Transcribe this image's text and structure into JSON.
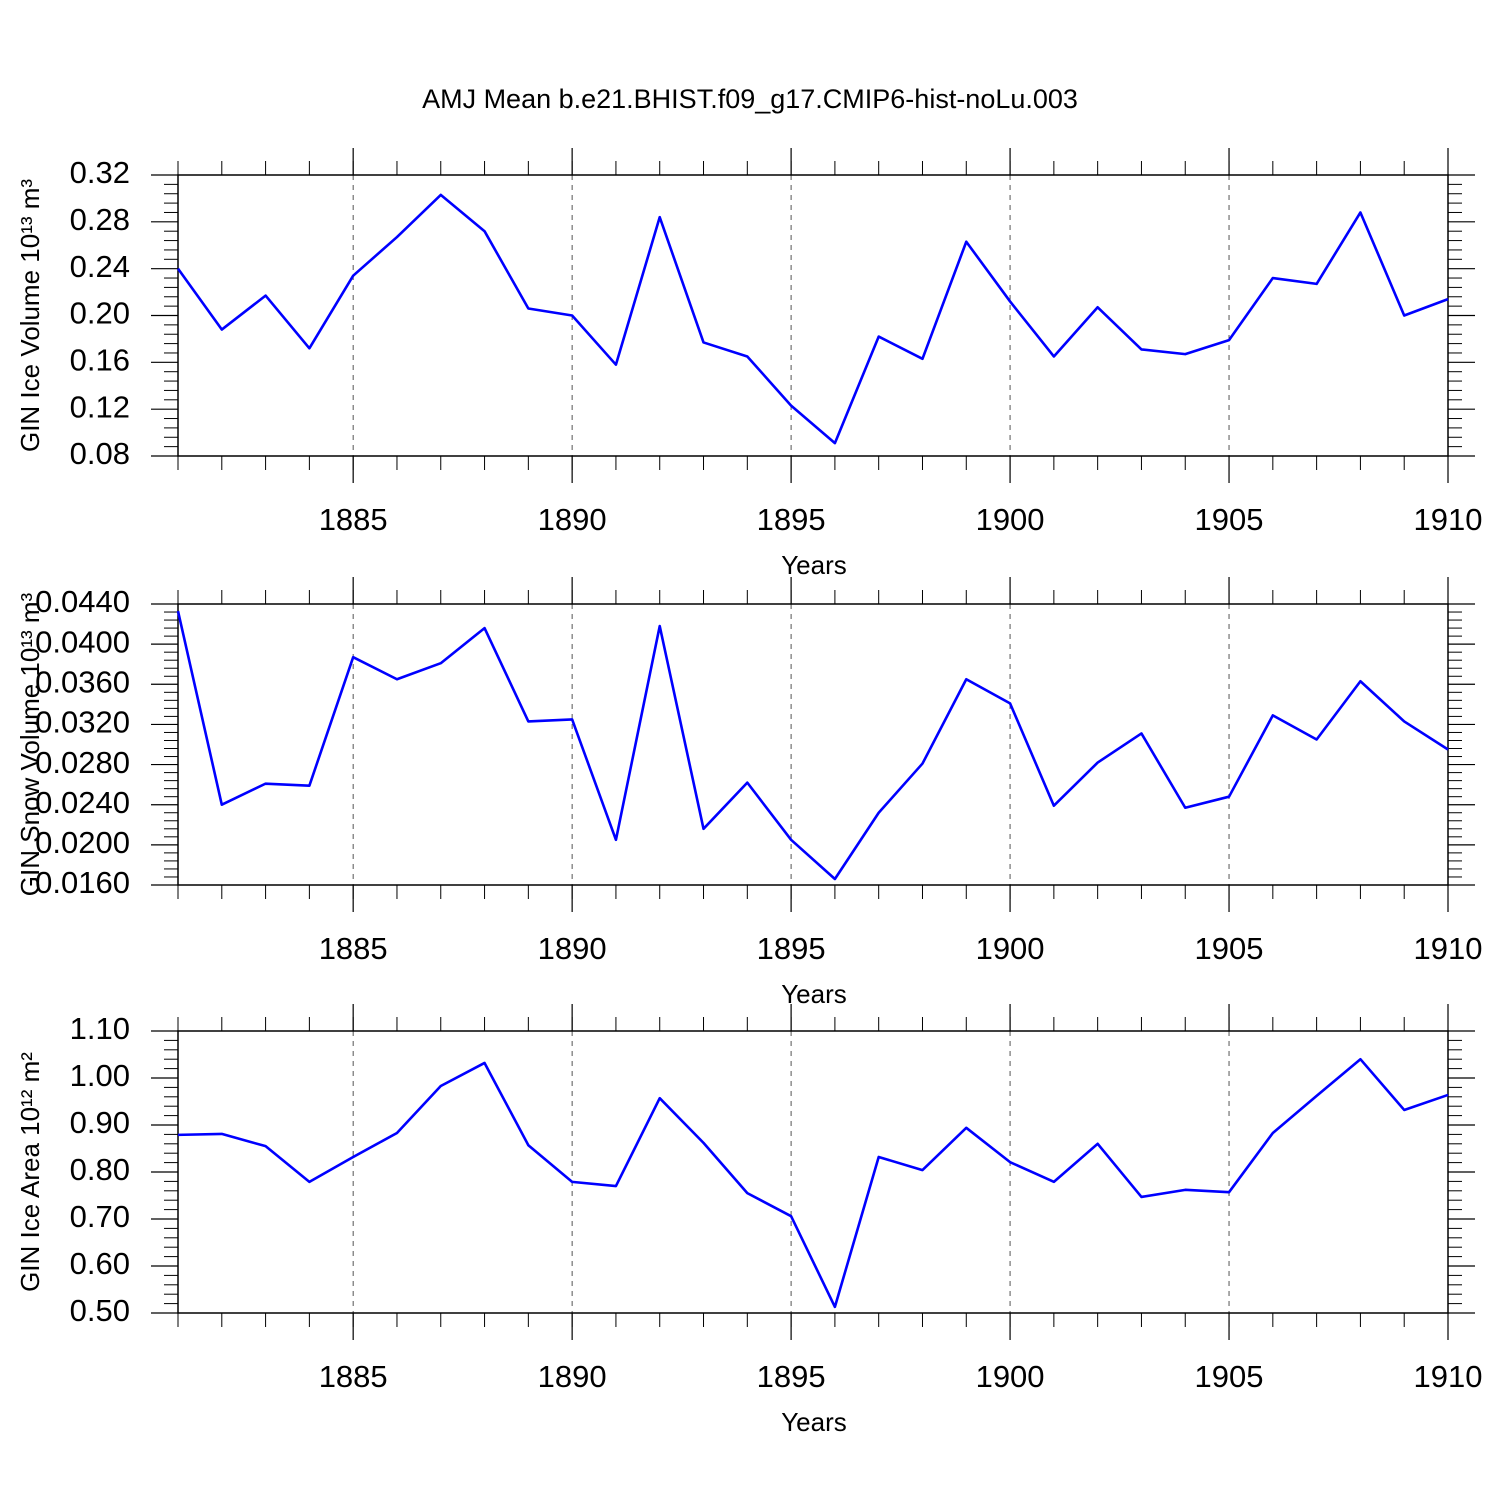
{
  "title": "AMJ Mean b.e21.BHIST.f09_g17.CMIP6-hist-noLu.003",
  "chart_data": [
    {
      "type": "line",
      "ylabel": "GIN Ice Volume 10¹³ m³",
      "xlabel": "Years",
      "x": [
        1881,
        1882,
        1883,
        1884,
        1885,
        1886,
        1887,
        1888,
        1889,
        1890,
        1891,
        1892,
        1893,
        1894,
        1895,
        1896,
        1897,
        1898,
        1899,
        1900,
        1901,
        1902,
        1903,
        1904,
        1905,
        1906,
        1907,
        1908,
        1909,
        1910
      ],
      "series": [
        {
          "color": "#0000ff",
          "values": [
            0.24,
            0.188,
            0.217,
            0.172,
            0.234,
            0.267,
            0.303,
            0.272,
            0.206,
            0.2,
            0.158,
            0.284,
            0.177,
            0.165,
            0.123,
            0.091,
            0.182,
            0.163,
            0.263,
            0.212,
            0.165,
            0.207,
            0.171,
            0.167,
            0.179,
            0.232,
            0.227,
            0.288,
            0.2,
            0.214
          ]
        }
      ],
      "xlim": [
        1881,
        1910
      ],
      "xticks": [
        1885,
        1890,
        1895,
        1900,
        1905,
        1910
      ],
      "ylim": [
        0.08,
        0.32
      ],
      "yticks": [
        0.08,
        0.12,
        0.16,
        {
          "value": 0.2,
          "label": "0.20"
        },
        0.24,
        0.28,
        0.32
      ],
      "grid": true
    },
    {
      "type": "line",
      "ylabel": "GIN Snow Volume 10¹³ m³",
      "xlabel": "Years",
      "x": [
        1881,
        1882,
        1883,
        1884,
        1885,
        1886,
        1887,
        1888,
        1889,
        1890,
        1891,
        1892,
        1893,
        1894,
        1895,
        1896,
        1897,
        1898,
        1899,
        1900,
        1901,
        1902,
        1903,
        1904,
        1905,
        1906,
        1907,
        1908,
        1909,
        1910
      ],
      "series": [
        {
          "color": "#0000ff",
          "values": [
            0.0433,
            0.024,
            0.0261,
            0.0259,
            0.0387,
            0.0365,
            0.0381,
            0.0416,
            0.0323,
            0.0325,
            0.0205,
            0.0418,
            0.0216,
            0.0262,
            0.0205,
            0.0166,
            0.0232,
            0.0281,
            0.0365,
            0.0341,
            0.0239,
            0.0282,
            0.0311,
            0.0237,
            0.0248,
            0.0329,
            0.0305,
            0.0363,
            0.0323,
            0.0295
          ]
        }
      ],
      "xlim": [
        1881,
        1910
      ],
      "xticks": [
        1885,
        1890,
        1895,
        1900,
        1905,
        1910
      ],
      "ylim": [
        0.016,
        0.044
      ],
      "yticks": [
        {
          "value": 0.016,
          "label": "0.0160"
        },
        {
          "value": 0.02,
          "label": "0.0200"
        },
        {
          "value": 0.024,
          "label": "0.0240"
        },
        {
          "value": 0.028,
          "label": "0.0280"
        },
        {
          "value": 0.032,
          "label": "0.0320"
        },
        {
          "value": 0.036,
          "label": "0.0360"
        },
        {
          "value": 0.04,
          "label": "0.0400"
        },
        {
          "value": 0.044,
          "label": "0.0440"
        }
      ],
      "grid": true
    },
    {
      "type": "line",
      "ylabel": "GIN Ice Area 10¹² m²",
      "xlabel": "Years",
      "x": [
        1881,
        1882,
        1883,
        1884,
        1885,
        1886,
        1887,
        1888,
        1889,
        1890,
        1891,
        1892,
        1893,
        1894,
        1895,
        1896,
        1897,
        1898,
        1899,
        1900,
        1901,
        1902,
        1903,
        1904,
        1905,
        1906,
        1907,
        1908,
        1909,
        1910
      ],
      "series": [
        {
          "color": "#0000ff",
          "values": [
            0.879,
            0.881,
            0.855,
            0.779,
            0.832,
            0.883,
            0.983,
            1.032,
            0.857,
            0.779,
            0.77,
            0.957,
            0.862,
            0.755,
            0.706,
            0.513,
            0.832,
            0.804,
            0.894,
            0.821,
            0.779,
            0.86,
            0.747,
            0.762,
            0.757,
            0.883,
            0.962,
            1.04,
            0.932,
            0.964
          ]
        }
      ],
      "xlim": [
        1881,
        1910
      ],
      "xticks": [
        1885,
        1890,
        1895,
        1900,
        1905,
        1910
      ],
      "ylim": [
        0.5,
        1.1
      ],
      "yticks": [
        {
          "value": 0.5,
          "label": "0.50"
        },
        {
          "value": 0.6,
          "label": "0.60"
        },
        {
          "value": 0.7,
          "label": "0.70"
        },
        {
          "value": 0.8,
          "label": "0.80"
        },
        {
          "value": 0.9,
          "label": "0.90"
        },
        {
          "value": 1.0,
          "label": "1.00"
        },
        {
          "value": 1.1,
          "label": "1.10"
        }
      ],
      "grid": true
    }
  ]
}
